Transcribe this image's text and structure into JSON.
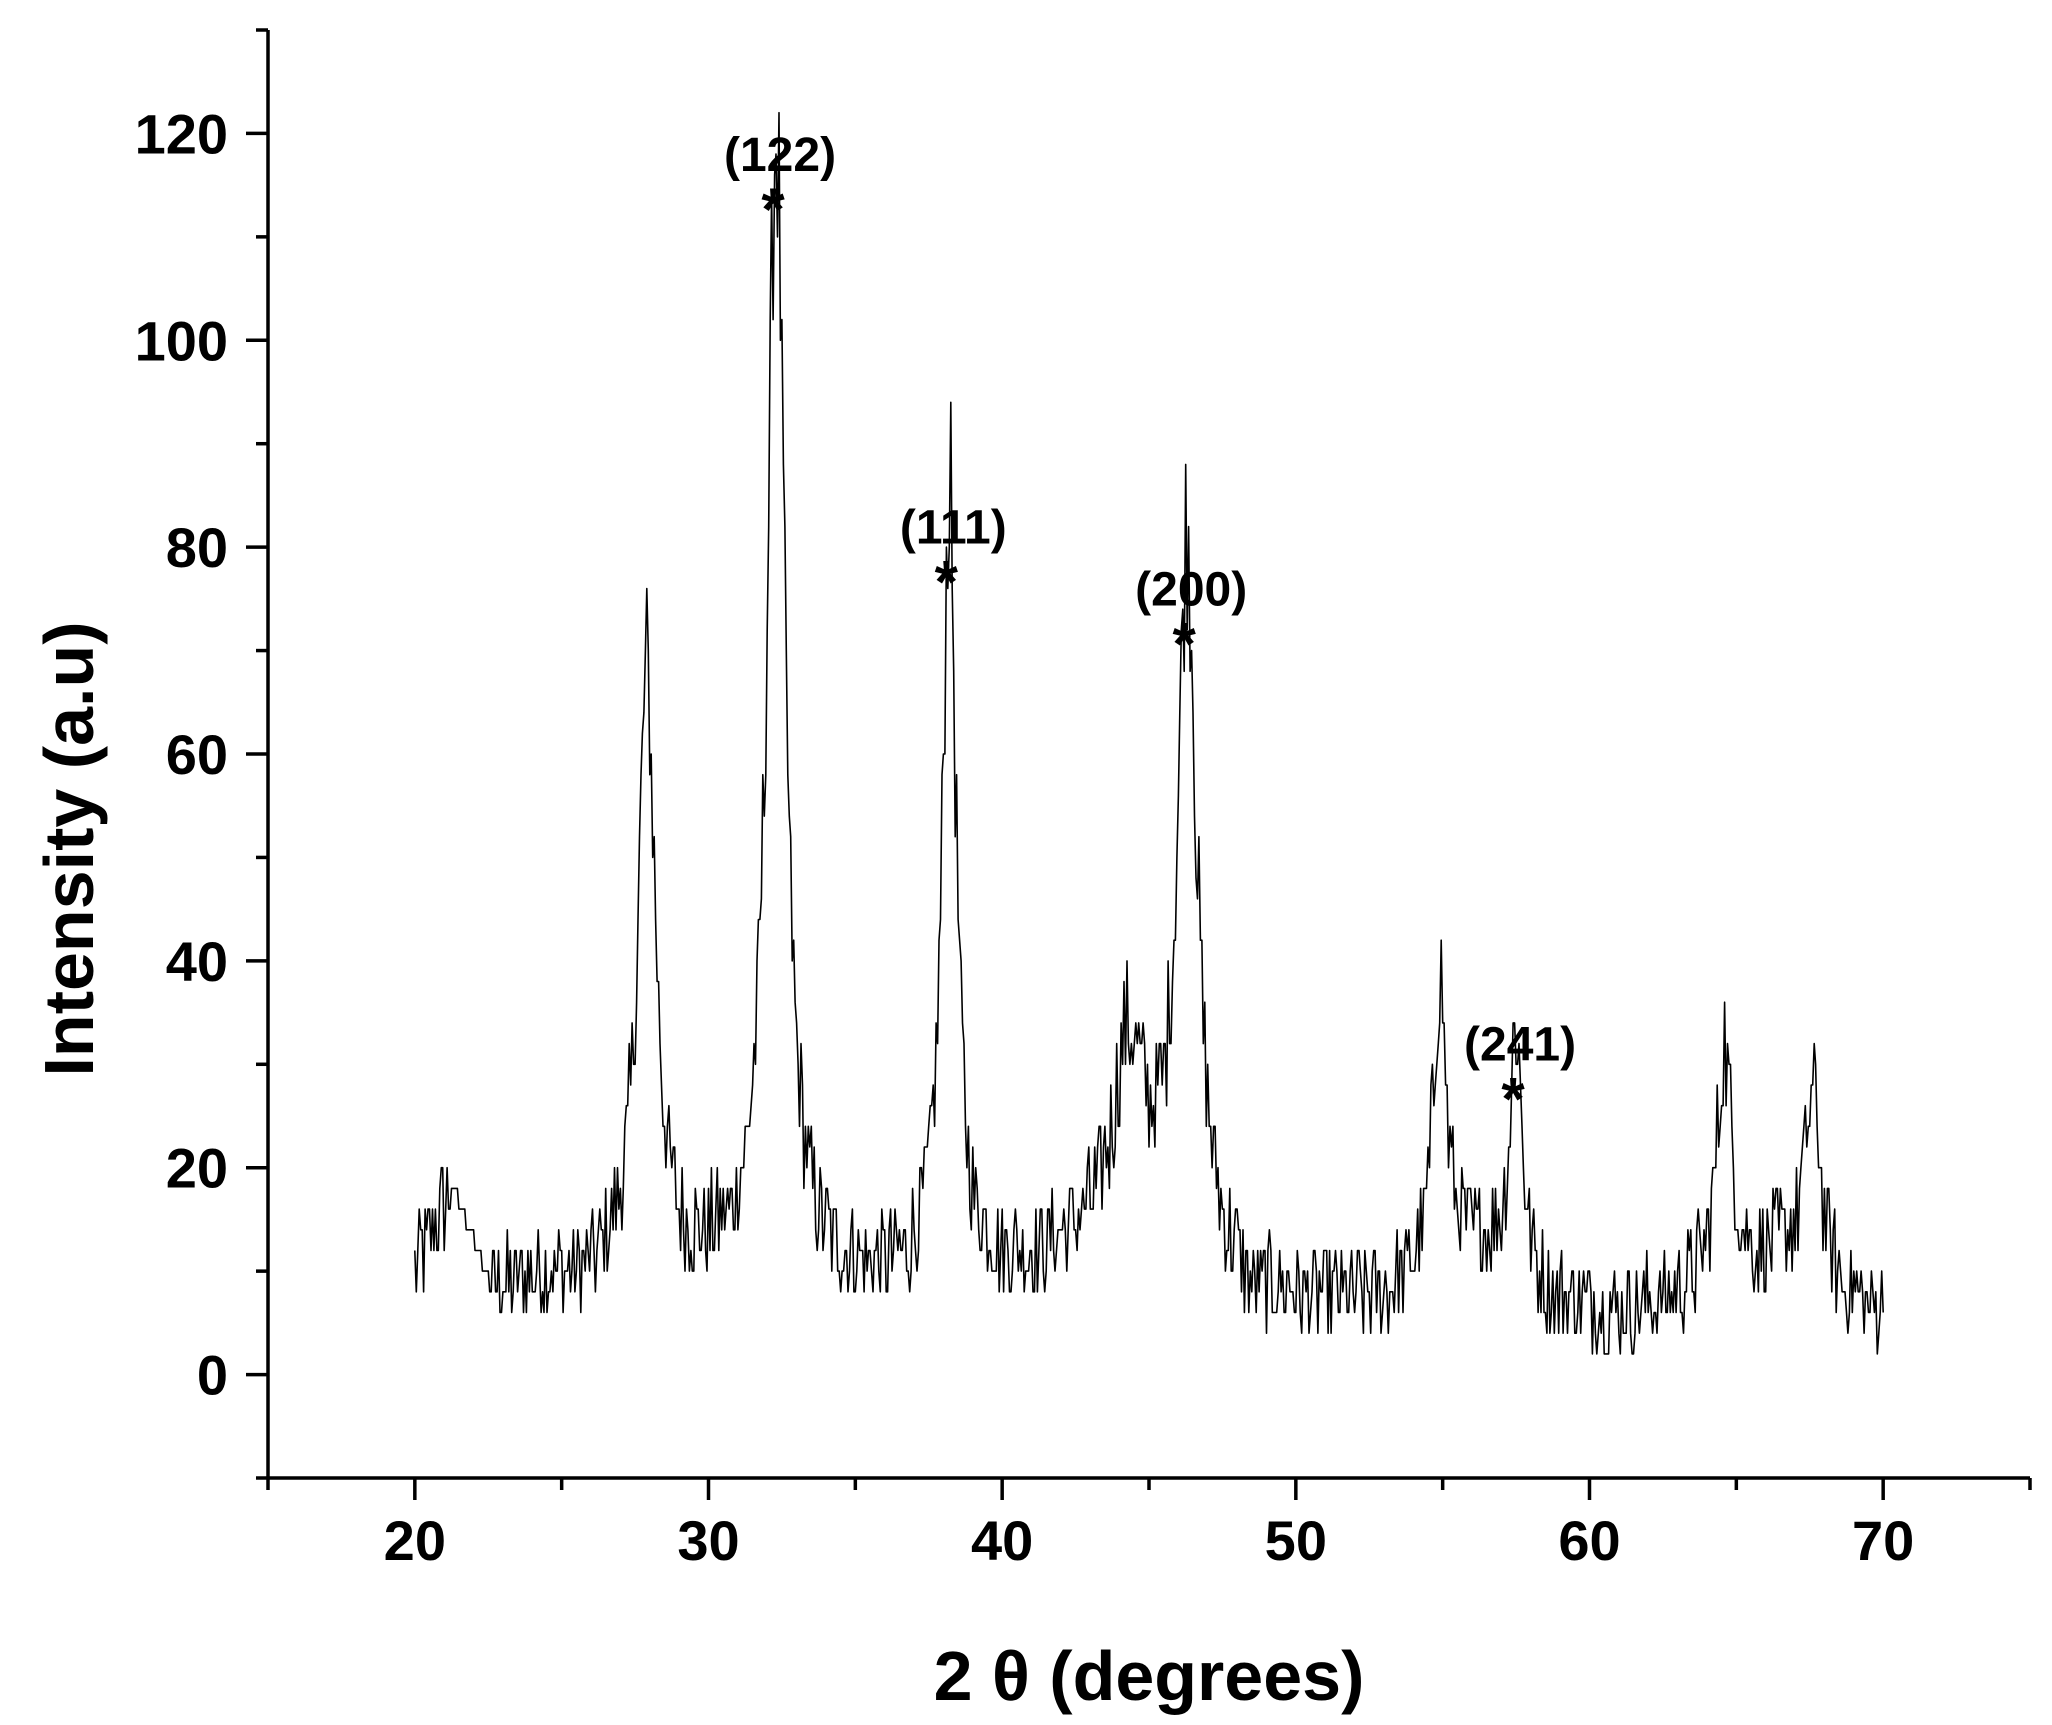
{
  "chart_data": {
    "type": "line",
    "xlabel": "2 θ (degrees)",
    "ylabel": "Intensity (a.u)",
    "xlim": [
      15,
      75
    ],
    "ylim": [
      -10,
      130
    ],
    "x_ticks": [
      20,
      30,
      40,
      50,
      60,
      70
    ],
    "y_ticks": [
      0,
      20,
      40,
      60,
      80,
      100,
      120
    ],
    "grid": false,
    "line_color": "#000000",
    "background": "#ffffff",
    "x_step": 0.05,
    "x": [
      20,
      70
    ],
    "baseline": {
      "x": [
        20,
        21.3,
        22.6,
        24,
        26,
        27,
        29,
        31,
        33,
        35,
        36.5,
        39.5,
        41,
        42.5,
        43.5,
        45.5,
        47.3,
        48.5,
        51,
        53,
        54,
        55.5,
        56.5,
        58.5,
        61,
        63,
        64,
        65.5,
        66.5,
        68.7,
        70
      ],
      "y": [
        10,
        18,
        8,
        9,
        9,
        10,
        10,
        10,
        10,
        9,
        9,
        10,
        10,
        12,
        13,
        14,
        10,
        7,
        7,
        7,
        9,
        12,
        12,
        7,
        6,
        7,
        9,
        10,
        11,
        7,
        6
      ]
    },
    "peaks": [
      {
        "center": 27.9,
        "height": 58,
        "fwhm": 0.7
      },
      {
        "center": 32.3,
        "height": 110,
        "fwhm": 0.7
      },
      {
        "center": 38.2,
        "height": 76,
        "fwhm": 0.55
      },
      {
        "center": 44.3,
        "height": 18,
        "fwhm": 1.2
      },
      {
        "center": 46.3,
        "height": 68,
        "fwhm": 0.75
      },
      {
        "center": 54.9,
        "height": 28,
        "fwhm": 0.5
      },
      {
        "center": 57.5,
        "height": 24,
        "fwhm": 0.5
      },
      {
        "center": 64.6,
        "height": 22,
        "fwhm": 0.6
      },
      {
        "center": 67.6,
        "height": 18,
        "fwhm": 0.7
      }
    ],
    "noise_amplitude": 4,
    "annotations": [
      {
        "label": "(122)",
        "marker": "*",
        "x": 32.3,
        "y": 112
      },
      {
        "label": "(111)",
        "marker": "*",
        "x": 38.2,
        "y": 76
      },
      {
        "label": "(200)",
        "marker": "*",
        "x": 46.3,
        "y": 70
      },
      {
        "label": "(241)",
        "marker": "*",
        "x": 57.5,
        "y": 26
      }
    ]
  }
}
